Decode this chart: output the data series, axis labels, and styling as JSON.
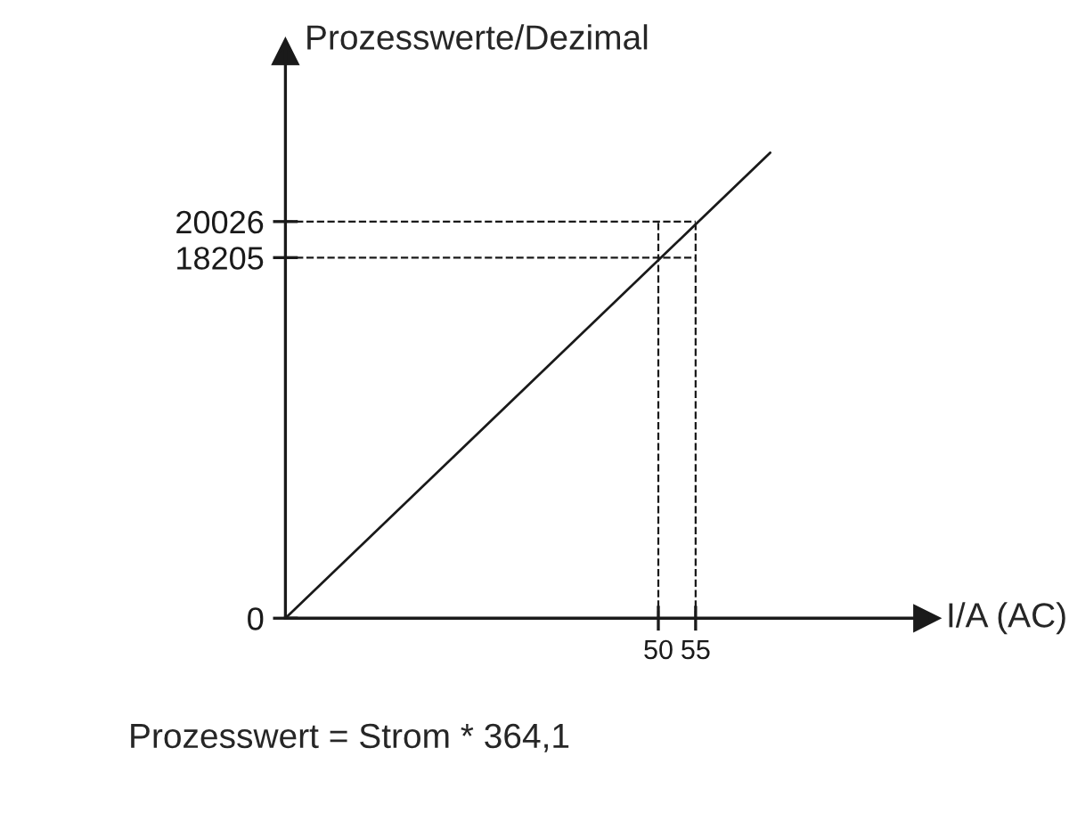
{
  "chart_data": {
    "type": "line",
    "xlabel": "I/A (AC)",
    "ylabel": "Prozesswerte/Dezimal",
    "series": [
      {
        "color": "#1a1a1a",
        "x": [
          0,
          65
        ],
        "values": [
          0,
          23500
        ]
      }
    ],
    "xlim": [
      0,
      86
    ],
    "ylim": [
      0,
      28600
    ],
    "xticks": [
      50,
      55
    ],
    "yticks": [
      0,
      18205,
      20026
    ],
    "ref_lines": [
      {
        "axis": "y",
        "value": 18205,
        "line_style": "dashed",
        "color": "#1a1a1a"
      },
      {
        "axis": "y",
        "value": 20026,
        "line_style": "dashed",
        "color": "#1a1a1a"
      },
      {
        "axis": "x",
        "value": 50,
        "line_style": "dashed",
        "color": "#1a1a1a"
      },
      {
        "axis": "x",
        "value": 55,
        "line_style": "dashed",
        "color": "#1a1a1a"
      }
    ],
    "annotations": [
      "Prozesswert = Strom * 364,1"
    ],
    "grid": false,
    "legend": false,
    "marker": "none",
    "line_style": "solid"
  }
}
